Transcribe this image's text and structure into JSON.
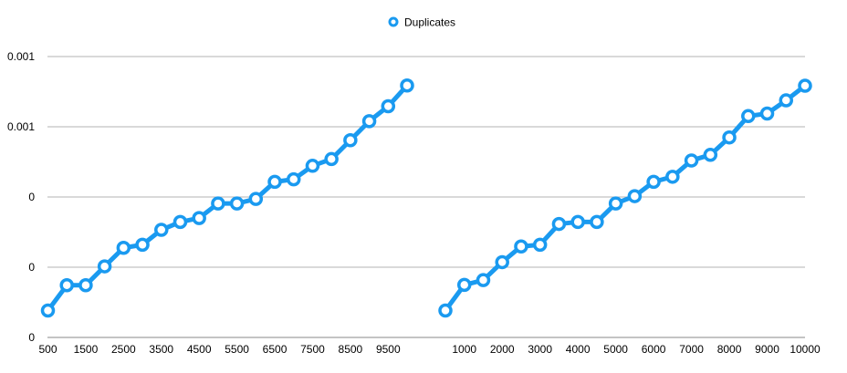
{
  "chart_data": {
    "type": "line",
    "title": "",
    "xlabel": "",
    "ylabel": "",
    "grid": true,
    "legend_placement": "top-center",
    "colors": {
      "series": "#1a9af0",
      "marker_fill": "#ffffff",
      "grid": "#b3b3b3",
      "baseline": "#8a8a8a"
    },
    "y_tick_labels": [
      "0",
      "0",
      "0",
      "0.001",
      "0.001"
    ],
    "y_tick_values": [
      0,
      0.00025,
      0.0005,
      0.00075,
      0.001
    ],
    "ylim": [
      0,
      0.001
    ],
    "series": [
      {
        "name": "Duplicates",
        "marker": "open-circle"
      }
    ],
    "x_tick_labels": [
      "500",
      "1500",
      "2500",
      "3500",
      "4500",
      "5500",
      "6500",
      "7500",
      "8500",
      "9500",
      "1000",
      "2000",
      "3000",
      "4000",
      "5000",
      "6000",
      "7000",
      "8000",
      "9000",
      "10000"
    ],
    "panels": [
      {
        "x": [
          500,
          1000,
          1500,
          2000,
          2500,
          3000,
          3500,
          4000,
          4500,
          5000,
          5500,
          6000,
          6500,
          7000,
          7500,
          8000,
          8500,
          9000,
          9500,
          10000
        ],
        "values": [
          9.58e-05,
          0.000186,
          0.000186,
          0.000253,
          0.000319,
          0.00033,
          0.000383,
          0.000411,
          0.000425,
          0.000477,
          0.000477,
          0.000493,
          0.000554,
          0.000563,
          0.000611,
          0.000635,
          0.000702,
          0.00077,
          0.000823,
          0.000897
        ]
      },
      {
        "x": [
          500,
          1000,
          1500,
          2000,
          2500,
          3000,
          3500,
          4000,
          4500,
          5000,
          5500,
          6000,
          6500,
          7000,
          7500,
          8000,
          8500,
          9000,
          9500,
          10000
        ],
        "values": [
          9.58e-05,
          0.000187,
          0.000204,
          0.000268,
          0.000324,
          0.00033,
          0.000404,
          0.000411,
          0.000411,
          0.000477,
          0.000503,
          0.000554,
          0.000572,
          0.00063,
          0.00065,
          0.000712,
          0.000788,
          0.000797,
          0.000844,
          0.000896
        ]
      }
    ]
  }
}
